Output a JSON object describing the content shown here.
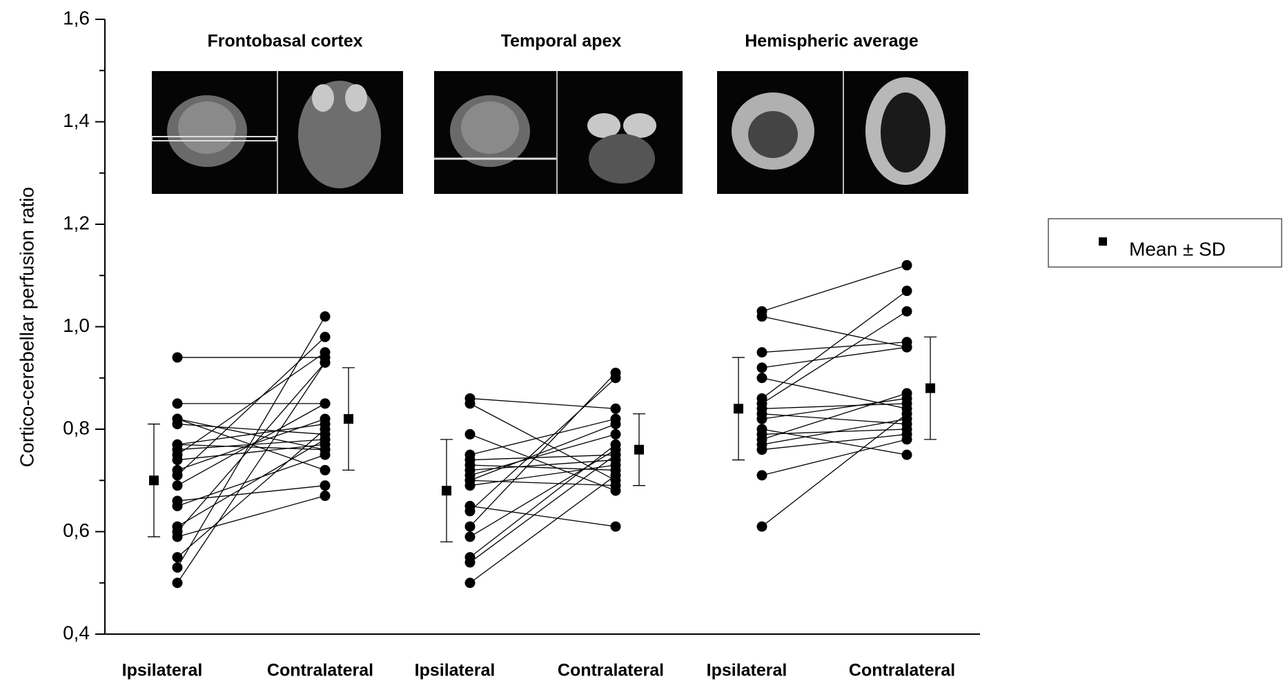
{
  "chart_data": {
    "type": "paired",
    "ylabel": "Cortico-cerebellar perfusion ratio",
    "ylim": [
      0.4,
      1.6
    ],
    "yticks": [
      {
        "value": 0.4,
        "label": "0,4"
      },
      {
        "value": 0.6,
        "label": "0,6"
      },
      {
        "value": 0.8,
        "label": "0,8"
      },
      {
        "value": 1.0,
        "label": "1,0"
      },
      {
        "value": 1.2,
        "label": "1,2"
      },
      {
        "value": 1.4,
        "label": "1,4"
      },
      {
        "value": 1.6,
        "label": "1,6"
      }
    ],
    "yminorticks": [
      0.5,
      0.7,
      0.9,
      1.1,
      1.3,
      1.5
    ],
    "legend_label": "Mean ± SD",
    "legend": "right",
    "color": "#000000",
    "groups": [
      {
        "title": "Frontobasal cortex",
        "conditions": [
          "Ipsilateral",
          "Contralateral"
        ],
        "ipsilateral": [
          0.94,
          0.85,
          0.82,
          0.82,
          0.81,
          0.77,
          0.77,
          0.76,
          0.75,
          0.74,
          0.72,
          0.71,
          0.69,
          0.66,
          0.65,
          0.61,
          0.6,
          0.59,
          0.55,
          0.53,
          0.5
        ],
        "contralateral": [
          0.94,
          0.85,
          0.76,
          0.72,
          0.79,
          0.76,
          0.81,
          0.78,
          0.95,
          0.77,
          0.82,
          0.98,
          0.85,
          0.69,
          0.75,
          0.78,
          0.93,
          0.67,
          0.8,
          1.02,
          0.93
        ],
        "mean": [
          0.7,
          0.82
        ],
        "sd": [
          0.11,
          0.1
        ]
      },
      {
        "title": "Temporal apex",
        "conditions": [
          "Ipsilateral",
          "Contralateral"
        ],
        "ipsilateral": [
          0.86,
          0.85,
          0.79,
          0.75,
          0.74,
          0.73,
          0.72,
          0.71,
          0.7,
          0.7,
          0.69,
          0.65,
          0.64,
          0.61,
          0.59,
          0.55,
          0.54,
          0.5
        ],
        "contralateral": [
          0.84,
          0.7,
          0.68,
          0.82,
          0.75,
          0.72,
          0.74,
          0.79,
          0.81,
          0.69,
          0.73,
          0.61,
          0.9,
          0.91,
          0.76,
          0.77,
          0.75,
          0.71
        ],
        "mean": [
          0.68,
          0.76
        ],
        "sd": [
          0.1,
          0.07
        ]
      },
      {
        "title": "Hemispheric average",
        "conditions": [
          "Ipsilateral",
          "Contralateral"
        ],
        "ipsilateral": [
          1.03,
          1.02,
          0.95,
          0.92,
          0.9,
          0.86,
          0.85,
          0.84,
          0.83,
          0.82,
          0.8,
          0.79,
          0.78,
          0.77,
          0.76,
          0.71,
          0.61
        ],
        "contralateral": [
          1.12,
          0.96,
          0.97,
          0.96,
          0.84,
          1.07,
          1.03,
          0.85,
          0.81,
          0.86,
          0.75,
          0.8,
          0.87,
          0.82,
          0.79,
          0.78,
          0.83
        ],
        "mean": [
          0.84,
          0.88
        ],
        "sd": [
          0.1,
          0.1
        ]
      }
    ]
  }
}
